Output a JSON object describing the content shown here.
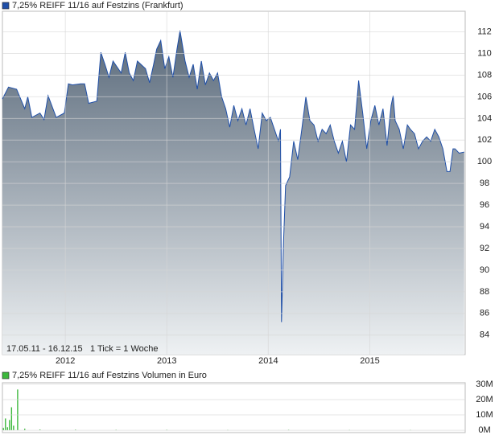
{
  "chart_data": [
    {
      "type": "area",
      "annotations": [
        "17.05.11 - 16.12.15",
        "1 Tick = 1 Woche"
      ],
      "x": [
        2011.38,
        2011.44,
        2011.52,
        2011.6,
        2011.63,
        2011.67,
        2011.75,
        2011.79,
        2011.83,
        2011.91,
        2011.99,
        2012.03,
        2012.07,
        2012.15,
        2012.19,
        2012.23,
        2012.31,
        2012.35,
        2012.39,
        2012.43,
        2012.47,
        2012.55,
        2012.59,
        2012.63,
        2012.67,
        2012.71,
        2012.79,
        2012.83,
        2012.87,
        2012.9,
        2012.94,
        2012.98,
        2013.02,
        2013.06,
        2013.1,
        2013.13,
        2013.18,
        2013.22,
        2013.26,
        2013.3,
        2013.34,
        2013.38,
        2013.42,
        2013.46,
        2013.5,
        2013.54,
        2013.58,
        2013.62,
        2013.66,
        2013.7,
        2013.74,
        2013.78,
        2013.82,
        2013.86,
        2013.9,
        2013.94,
        2013.98,
        2014.02,
        2014.06,
        2014.1,
        2014.12,
        2014.13,
        2014.15,
        2014.17,
        2014.21,
        2014.25,
        2014.29,
        2014.33,
        2014.37,
        2014.41,
        2014.45,
        2014.49,
        2014.53,
        2014.57,
        2014.61,
        2014.65,
        2014.69,
        2014.73,
        2014.77,
        2014.81,
        2014.85,
        2014.89,
        2014.93,
        2014.97,
        2015.01,
        2015.05,
        2015.09,
        2015.13,
        2015.17,
        2015.21,
        2015.23,
        2015.25,
        2015.29,
        2015.33,
        2015.37,
        2015.4,
        2015.44,
        2015.48,
        2015.52,
        2015.56,
        2015.6,
        2015.64,
        2015.68,
        2015.72,
        2015.76,
        2015.79,
        2015.82,
        2015.84,
        2015.88,
        2015.93
      ],
      "series": [
        {
          "name": "7,25% REIFF 11/16 auf Festzins (Frankfurt)",
          "color": "#1f4fa8",
          "values": [
            105.8,
            106.9,
            106.7,
            104.9,
            106.0,
            104.1,
            104.5,
            103.9,
            106.1,
            104.1,
            104.5,
            107.2,
            107.1,
            107.2,
            107.2,
            105.4,
            105.6,
            110.1,
            109.0,
            107.8,
            109.3,
            108.2,
            110.1,
            108.2,
            107.5,
            109.3,
            108.6,
            107.3,
            109.0,
            110.4,
            111.2,
            108.6,
            109.7,
            107.8,
            110.4,
            112.1,
            109.3,
            107.8,
            109.0,
            106.7,
            109.3,
            107.1,
            108.2,
            107.5,
            108.2,
            106.0,
            104.9,
            103.2,
            105.2,
            103.8,
            104.9,
            103.4,
            104.9,
            103.0,
            101.2,
            104.5,
            103.8,
            104.1,
            103.0,
            101.9,
            103.0,
            85.2,
            92.6,
            97.8,
            98.6,
            101.9,
            100.2,
            103.0,
            106.0,
            103.8,
            103.4,
            101.9,
            103.0,
            102.6,
            103.4,
            101.9,
            100.8,
            101.9,
            100.0,
            103.4,
            103.0,
            107.5,
            104.5,
            101.2,
            103.8,
            105.2,
            103.4,
            104.9,
            101.5,
            105.2,
            106.1,
            103.8,
            103.0,
            101.2,
            103.4,
            103.0,
            102.6,
            101.2,
            101.9,
            102.3,
            101.9,
            103.0,
            102.3,
            101.2,
            99.1,
            99.1,
            101.2,
            101.2,
            100.8,
            100.9
          ]
        }
      ],
      "xlim": [
        2011.38,
        2015.94
      ],
      "xticks": [
        2012,
        2013,
        2014,
        2015
      ],
      "ylim": [
        82.2,
        113.9
      ],
      "yticks": [
        84,
        86,
        88,
        90,
        92,
        94,
        96,
        98,
        100,
        102,
        104,
        106,
        108,
        110,
        112
      ],
      "grid": true
    },
    {
      "type": "bar",
      "x": [
        2011.39,
        2011.41,
        2011.43,
        2011.45,
        2011.47,
        2011.49,
        2011.53,
        2011.6,
        2011.75,
        2012.1,
        2012.5,
        2013.0,
        2013.6,
        2014.2,
        2014.8,
        2015.4
      ],
      "series": [
        {
          "name": "7,25% REIFF 11/16 auf Festzins Volumen in Euro",
          "color": "#3cb83c",
          "values": [
            1500000,
            7700000,
            2000000,
            6700000,
            15000000,
            3000000,
            26600000,
            1000000,
            500000,
            400000,
            300000,
            300000,
            200000,
            300000,
            200000,
            200000
          ]
        }
      ],
      "xlim": [
        2011.38,
        2015.94
      ],
      "ylim": [
        -1500000,
        31000000
      ],
      "yticks": [
        {
          "value": 0,
          "label": "0M"
        },
        {
          "value": 10000000,
          "label": "10M"
        },
        {
          "value": 20000000,
          "label": "20M"
        },
        {
          "value": 30000000,
          "label": "30M"
        }
      ],
      "grid": true
    }
  ]
}
